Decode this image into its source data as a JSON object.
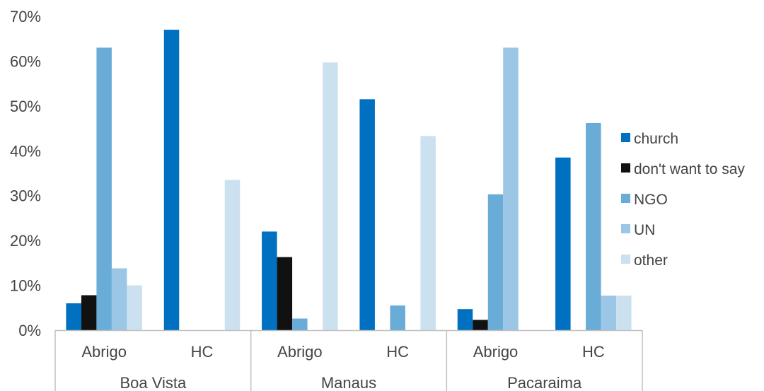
{
  "chart_data": {
    "type": "bar",
    "title": "",
    "xlabel": "",
    "ylabel": "",
    "ylim": [
      0,
      0.7
    ],
    "y_ticks": [
      "0%",
      "10%",
      "20%",
      "30%",
      "40%",
      "50%",
      "60%",
      "70%"
    ],
    "grid": false,
    "legend_position": "right",
    "groups": [
      "Boa Vista",
      "Manaus",
      "Pacaraima"
    ],
    "categories": [
      {
        "group": "Boa Vista",
        "label": "Abrigo"
      },
      {
        "group": "Boa Vista",
        "label": "HC"
      },
      {
        "group": "Manaus",
        "label": "Abrigo"
      },
      {
        "group": "Manaus",
        "label": "HC"
      },
      {
        "group": "Pacaraima",
        "label": "Abrigo"
      },
      {
        "group": "Pacaraima",
        "label": "HC"
      }
    ],
    "series": [
      {
        "name": "church",
        "color": "#0070c0",
        "values": [
          0.06,
          0.67,
          0.22,
          0.515,
          0.047,
          0.385
        ]
      },
      {
        "name": "don't want to say",
        "color": "#111111",
        "values": [
          0.078,
          0,
          0.163,
          0,
          0.023,
          0
        ]
      },
      {
        "name": "NGO",
        "color": "#6aacd8",
        "values": [
          0.63,
          0,
          0.026,
          0.055,
          0.303,
          0.462
        ]
      },
      {
        "name": "UN",
        "color": "#9cc6e6",
        "values": [
          0.138,
          0,
          0,
          0,
          0.63,
          0.077
        ]
      },
      {
        "name": "other",
        "color": "#cce1f0",
        "values": [
          0.1,
          0.335,
          0.597,
          0.433,
          0,
          0.077
        ]
      }
    ]
  }
}
